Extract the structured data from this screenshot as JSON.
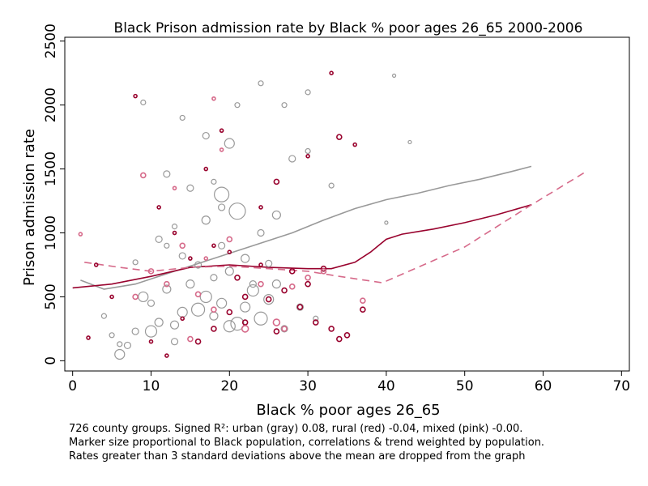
{
  "chart_data": {
    "type": "scatter",
    "title": "Black Prison admission rate by Black % poor ages 26_65 2000-2006",
    "xlabel": "Black % poor ages 26_65",
    "ylabel": "Prison admission rate",
    "xlim": [
      -1,
      71
    ],
    "ylim": [
      -80,
      2530
    ],
    "xticks": [
      "0",
      "10",
      "20",
      "30",
      "40",
      "50",
      "60",
      "70"
    ],
    "yticks": [
      "0",
      "500",
      "1000",
      "1500",
      "2000",
      "2500"
    ],
    "xtick_values": [
      0,
      10,
      20,
      30,
      40,
      50,
      60,
      70
    ],
    "ytick_values": [
      0,
      500,
      1000,
      1500,
      2000,
      2500
    ],
    "grid": false,
    "legend": "none",
    "colors": {
      "urban": "#999999",
      "rural": "#99032e",
      "mixed": "#d66a8a"
    },
    "trends": [
      {
        "group": "urban",
        "style": "solid",
        "points": [
          [
            1,
            630
          ],
          [
            4,
            560
          ],
          [
            8,
            600
          ],
          [
            12,
            680
          ],
          [
            16,
            760
          ],
          [
            20,
            840
          ],
          [
            24,
            920
          ],
          [
            28,
            1000
          ],
          [
            32,
            1100
          ],
          [
            36,
            1190
          ],
          [
            40,
            1260
          ],
          [
            44,
            1310
          ],
          [
            48,
            1370
          ],
          [
            52,
            1420
          ],
          [
            56,
            1480
          ],
          [
            58.5,
            1520
          ]
        ]
      },
      {
        "group": "rural",
        "style": "solid",
        "points": [
          [
            0,
            570
          ],
          [
            5,
            600
          ],
          [
            10,
            660
          ],
          [
            15,
            730
          ],
          [
            20,
            750
          ],
          [
            25,
            730
          ],
          [
            30,
            720
          ],
          [
            33,
            720
          ],
          [
            36,
            770
          ],
          [
            38,
            850
          ],
          [
            39,
            900
          ],
          [
            40,
            950
          ],
          [
            42,
            990
          ],
          [
            46,
            1030
          ],
          [
            50,
            1080
          ],
          [
            54,
            1140
          ],
          [
            58.5,
            1220
          ]
        ]
      },
      {
        "group": "mixed",
        "style": "dashed",
        "points": [
          [
            1.5,
            770
          ],
          [
            6,
            730
          ],
          [
            10,
            700
          ],
          [
            15,
            730
          ],
          [
            20,
            740
          ],
          [
            25,
            720
          ],
          [
            30,
            700
          ],
          [
            34,
            660
          ],
          [
            39.5,
            610
          ],
          [
            50,
            890
          ],
          [
            58,
            1200
          ],
          [
            65.5,
            1480
          ]
        ]
      }
    ],
    "points": [
      [
        6,
        50,
        "urban",
        6
      ],
      [
        7,
        120,
        "urban",
        4
      ],
      [
        5,
        200,
        "urban",
        3
      ],
      [
        8,
        230,
        "urban",
        4
      ],
      [
        10,
        230,
        "urban",
        7
      ],
      [
        11,
        300,
        "urban",
        5
      ],
      [
        13,
        280,
        "urban",
        5
      ],
      [
        14,
        380,
        "urban",
        6
      ],
      [
        16,
        400,
        "urban",
        8
      ],
      [
        18,
        350,
        "urban",
        5
      ],
      [
        20,
        270,
        "urban",
        7
      ],
      [
        21,
        290,
        "urban",
        8
      ],
      [
        22,
        420,
        "urban",
        6
      ],
      [
        24,
        330,
        "urban",
        8
      ],
      [
        25,
        480,
        "urban",
        6
      ],
      [
        17,
        500,
        "urban",
        7
      ],
      [
        19,
        450,
        "urban",
        6
      ],
      [
        12,
        560,
        "urban",
        5
      ],
      [
        9,
        500,
        "urban",
        6
      ],
      [
        15,
        600,
        "urban",
        5
      ],
      [
        23,
        550,
        "urban",
        7
      ],
      [
        26,
        600,
        "urban",
        5
      ],
      [
        18,
        650,
        "urban",
        4
      ],
      [
        20,
        700,
        "urban",
        5
      ],
      [
        16,
        750,
        "urban",
        4
      ],
      [
        22,
        800,
        "urban",
        5
      ],
      [
        14,
        820,
        "urban",
        4
      ],
      [
        19,
        900,
        "urban",
        4
      ],
      [
        11,
        950,
        "urban",
        4
      ],
      [
        24,
        1000,
        "urban",
        4
      ],
      [
        13,
        1050,
        "urban",
        3
      ],
      [
        17,
        1100,
        "urban",
        5
      ],
      [
        21,
        1170,
        "urban",
        10
      ],
      [
        26,
        1140,
        "urban",
        5
      ],
      [
        19,
        1300,
        "urban",
        9
      ],
      [
        15,
        1350,
        "urban",
        4
      ],
      [
        12,
        1460,
        "urban",
        4
      ],
      [
        18,
        1400,
        "urban",
        3
      ],
      [
        20,
        1700,
        "urban",
        6
      ],
      [
        17,
        1760,
        "urban",
        4
      ],
      [
        28,
        1580,
        "urban",
        4
      ],
      [
        30,
        1640,
        "urban",
        3
      ],
      [
        21,
        2000,
        "urban",
        3
      ],
      [
        9,
        2020,
        "urban",
        3
      ],
      [
        14,
        1900,
        "urban",
        3
      ],
      [
        24,
        2170,
        "urban",
        3
      ],
      [
        27,
        2000,
        "urban",
        3
      ],
      [
        30,
        2100,
        "urban",
        3
      ],
      [
        41,
        2230,
        "urban",
        2
      ],
      [
        43,
        1710,
        "urban",
        2
      ],
      [
        33,
        1370,
        "urban",
        3
      ],
      [
        40,
        1080,
        "urban",
        2
      ],
      [
        6,
        130,
        "urban",
        3
      ],
      [
        4,
        350,
        "urban",
        3
      ],
      [
        13,
        150,
        "urban",
        4
      ],
      [
        10,
        450,
        "urban",
        4
      ],
      [
        27,
        250,
        "urban",
        4
      ],
      [
        29,
        420,
        "urban",
        4
      ],
      [
        31,
        330,
        "urban",
        3
      ],
      [
        23,
        600,
        "urban",
        4
      ],
      [
        8,
        770,
        "urban",
        3
      ],
      [
        12,
        900,
        "urban",
        3
      ],
      [
        19,
        1200,
        "urban",
        4
      ],
      [
        25,
        760,
        "urban",
        4
      ],
      [
        10,
        150,
        "rural",
        2
      ],
      [
        12,
        40,
        "rural",
        2
      ],
      [
        16,
        150,
        "rural",
        3
      ],
      [
        18,
        250,
        "rural",
        3
      ],
      [
        20,
        380,
        "rural",
        3
      ],
      [
        22,
        500,
        "rural",
        3
      ],
      [
        25,
        480,
        "rural",
        3
      ],
      [
        27,
        550,
        "rural",
        3
      ],
      [
        29,
        420,
        "rural",
        3
      ],
      [
        31,
        300,
        "rural",
        3
      ],
      [
        33,
        250,
        "rural",
        3
      ],
      [
        35,
        200,
        "rural",
        3
      ],
      [
        34,
        170,
        "rural",
        3
      ],
      [
        30,
        600,
        "rural",
        3
      ],
      [
        28,
        700,
        "rural",
        3
      ],
      [
        24,
        750,
        "rural",
        2
      ],
      [
        20,
        850,
        "rural",
        2
      ],
      [
        18,
        900,
        "rural",
        2
      ],
      [
        15,
        800,
        "rural",
        2
      ],
      [
        13,
        1000,
        "rural",
        2
      ],
      [
        11,
        1200,
        "rural",
        2
      ],
      [
        17,
        1500,
        "rural",
        2
      ],
      [
        19,
        1800,
        "rural",
        2
      ],
      [
        26,
        1400,
        "rural",
        3
      ],
      [
        30,
        1600,
        "rural",
        2
      ],
      [
        34,
        1750,
        "rural",
        3
      ],
      [
        36,
        1690,
        "rural",
        2
      ],
      [
        33,
        2250,
        "rural",
        2
      ],
      [
        8,
        2070,
        "rural",
        2
      ],
      [
        5,
        500,
        "rural",
        2
      ],
      [
        3,
        750,
        "rural",
        2
      ],
      [
        2,
        180,
        "rural",
        2
      ],
      [
        22,
        300,
        "rural",
        3
      ],
      [
        24,
        1200,
        "rural",
        2
      ],
      [
        21,
        650,
        "rural",
        3
      ],
      [
        32,
        720,
        "rural",
        3
      ],
      [
        37,
        400,
        "rural",
        3
      ],
      [
        26,
        230,
        "rural",
        3
      ],
      [
        14,
        330,
        "rural",
        2
      ],
      [
        8,
        500,
        "mixed",
        3
      ],
      [
        10,
        700,
        "mixed",
        3
      ],
      [
        12,
        600,
        "mixed",
        3
      ],
      [
        14,
        900,
        "mixed",
        3
      ],
      [
        16,
        520,
        "mixed",
        3
      ],
      [
        18,
        400,
        "mixed",
        3
      ],
      [
        20,
        950,
        "mixed",
        3
      ],
      [
        22,
        250,
        "mixed",
        4
      ],
      [
        26,
        300,
        "mixed",
        4
      ],
      [
        28,
        580,
        "mixed",
        3
      ],
      [
        30,
        650,
        "mixed",
        3
      ],
      [
        32,
        700,
        "mixed",
        3
      ],
      [
        37,
        470,
        "mixed",
        3
      ],
      [
        1,
        990,
        "mixed",
        2
      ],
      [
        13,
        1350,
        "mixed",
        2
      ],
      [
        9,
        1450,
        "mixed",
        3
      ],
      [
        18,
        2050,
        "mixed",
        2
      ],
      [
        19,
        1650,
        "mixed",
        2
      ],
      [
        24,
        600,
        "mixed",
        3
      ],
      [
        17,
        800,
        "mixed",
        2
      ],
      [
        15,
        170,
        "mixed",
        3
      ],
      [
        27,
        250,
        "mixed",
        3
      ]
    ]
  },
  "notes": [
    "726 county groups. Signed R²: urban (gray) 0.08, rural (red) -0.04, mixed (pink) -0.00.",
    "Marker size proportional to Black population, correlations & trend weighted by population.",
    "Rates greater than 3 standard deviations above the mean are dropped from the graph"
  ]
}
